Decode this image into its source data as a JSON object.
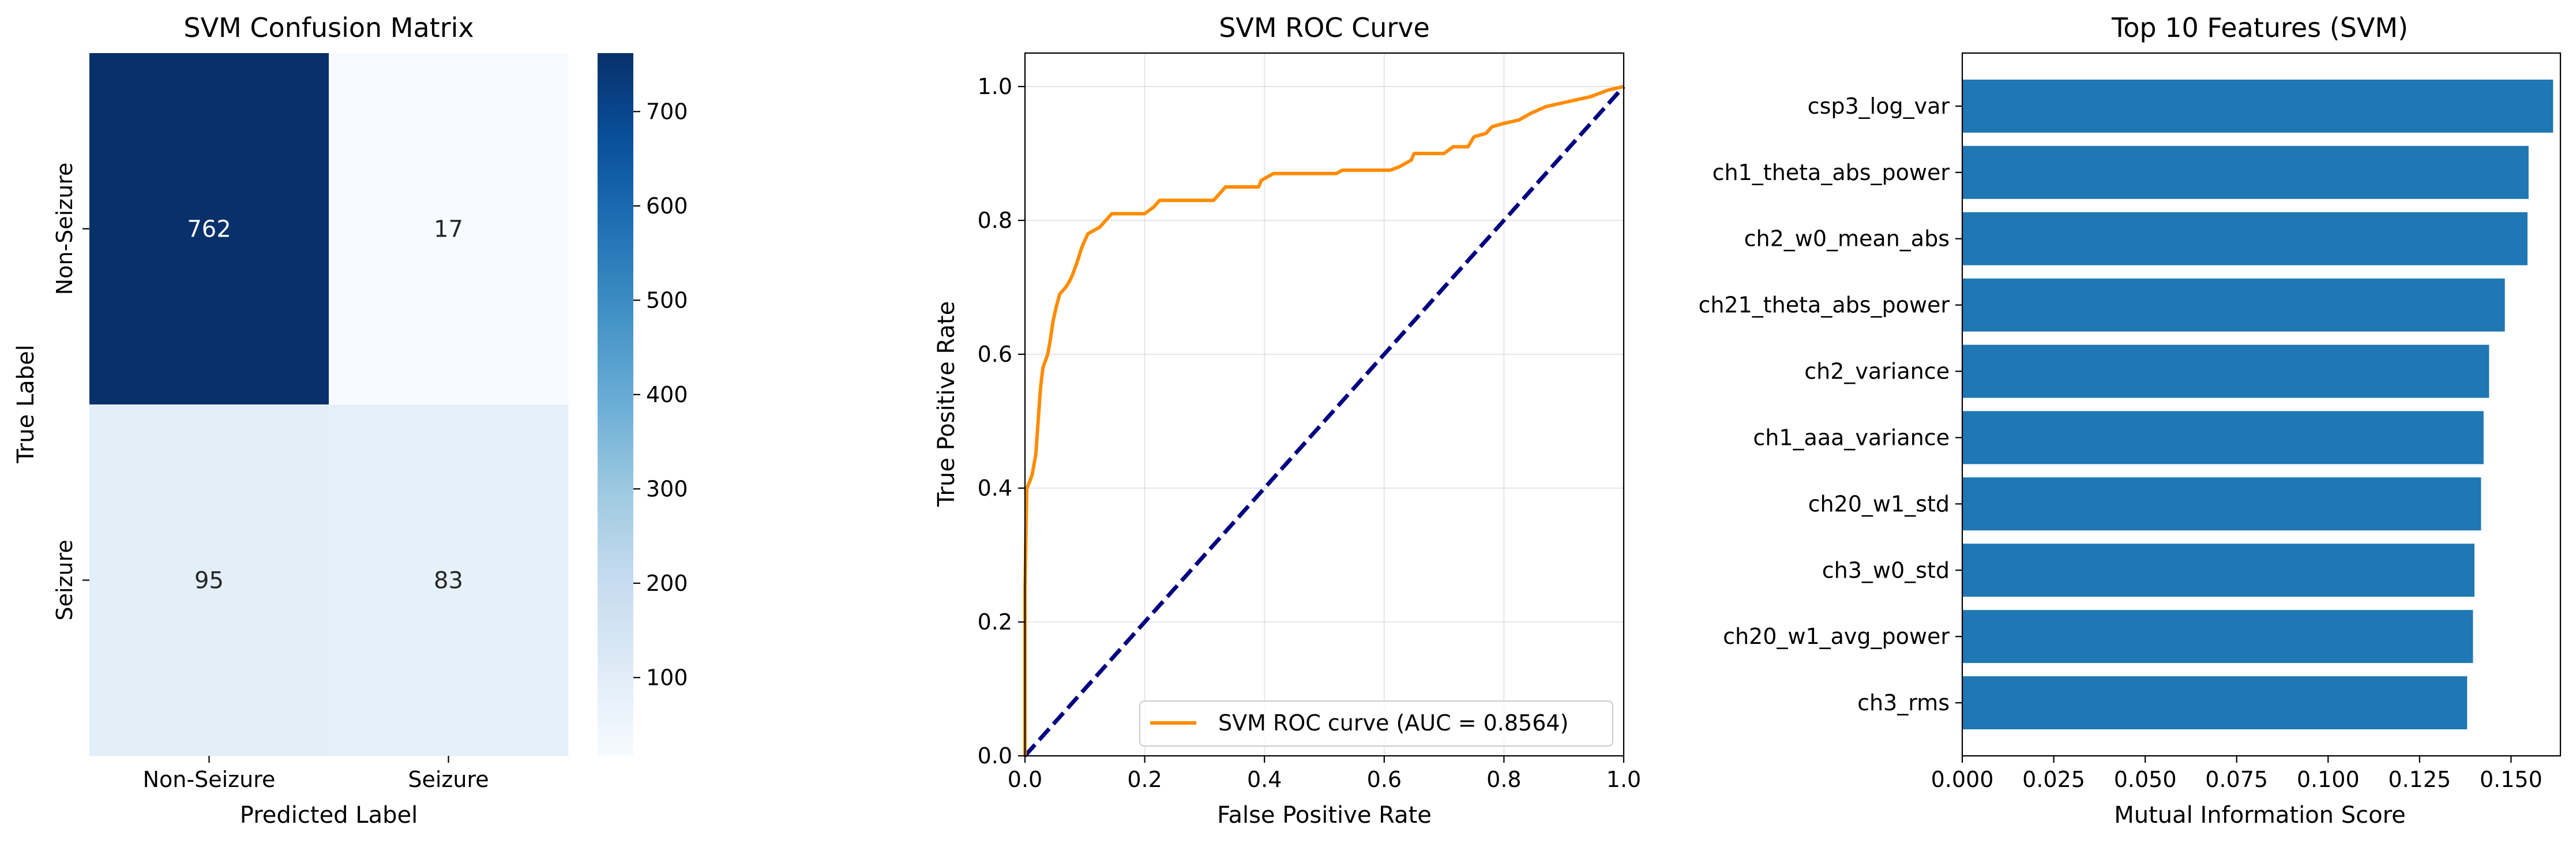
{
  "chart_data": [
    {
      "type": "heatmap",
      "title": "SVM Confusion Matrix",
      "xlabel": "Predicted Label",
      "ylabel": "True Label",
      "x_categories": [
        "Non-Seizure",
        "Seizure"
      ],
      "y_categories": [
        "Non-Seizure",
        "Seizure"
      ],
      "matrix": [
        [
          762,
          17
        ],
        [
          95,
          83
        ]
      ],
      "cells": [
        {
          "text": "762",
          "value": 762,
          "row": 0,
          "col": 0
        },
        {
          "text": "17",
          "value": 17,
          "row": 0,
          "col": 1
        },
        {
          "text": "95",
          "value": 95,
          "row": 1,
          "col": 0
        },
        {
          "text": "83",
          "value": 83,
          "row": 1,
          "col": 1
        }
      ],
      "colorbar": {
        "range": [
          17,
          762
        ],
        "ticks": [
          100,
          200,
          300,
          400,
          500,
          600,
          700
        ],
        "tick_labels": [
          "100",
          "200",
          "300",
          "400",
          "500",
          "600",
          "700"
        ]
      },
      "colormap": "Blues",
      "low_color": "#f7fbff",
      "high_color": "#08306b"
    },
    {
      "type": "line",
      "title": "SVM ROC Curve",
      "xlabel": "False Positive Rate",
      "ylabel": "True Positive Rate",
      "xlim": [
        0,
        1
      ],
      "ylim": [
        0,
        1.05
      ],
      "x_ticks": [
        0,
        0.2,
        0.4,
        0.6,
        0.8,
        1.0
      ],
      "x_tick_labels": [
        "0.0",
        "0.2",
        "0.4",
        "0.6",
        "0.8",
        "1.0"
      ],
      "y_ticks": [
        0,
        0.2,
        0.4,
        0.6,
        0.8,
        1.0
      ],
      "y_tick_labels": [
        "0.0",
        "0.2",
        "0.4",
        "0.6",
        "0.8",
        "1.0"
      ],
      "grid": true,
      "legend_position": "lower right",
      "series": [
        {
          "name": "SVM ROC curve (AUC = 0.8564)",
          "color": "#ff8c00",
          "style": "solid",
          "points": [
            [
              0,
              0
            ],
            [
              0,
              0.25
            ],
            [
              0.003,
              0.4
            ],
            [
              0.008,
              0.41
            ],
            [
              0.012,
              0.42
            ],
            [
              0.018,
              0.45
            ],
            [
              0.022,
              0.5
            ],
            [
              0.026,
              0.55
            ],
            [
              0.03,
              0.58
            ],
            [
              0.038,
              0.6
            ],
            [
              0.042,
              0.62
            ],
            [
              0.047,
              0.65
            ],
            [
              0.052,
              0.67
            ],
            [
              0.058,
              0.69
            ],
            [
              0.068,
              0.7
            ],
            [
              0.075,
              0.71
            ],
            [
              0.08,
              0.72
            ],
            [
              0.088,
              0.74
            ],
            [
              0.095,
              0.76
            ],
            [
              0.105,
              0.78
            ],
            [
              0.115,
              0.785
            ],
            [
              0.125,
              0.79
            ],
            [
              0.135,
              0.8
            ],
            [
              0.145,
              0.81
            ],
            [
              0.2,
              0.81
            ],
            [
              0.215,
              0.82
            ],
            [
              0.225,
              0.83
            ],
            [
              0.315,
              0.83
            ],
            [
              0.325,
              0.84
            ],
            [
              0.335,
              0.85
            ],
            [
              0.39,
              0.85
            ],
            [
              0.395,
              0.86
            ],
            [
              0.405,
              0.865
            ],
            [
              0.415,
              0.87
            ],
            [
              0.52,
              0.87
            ],
            [
              0.53,
              0.875
            ],
            [
              0.61,
              0.875
            ],
            [
              0.625,
              0.88
            ],
            [
              0.645,
              0.89
            ],
            [
              0.65,
              0.9
            ],
            [
              0.7,
              0.9
            ],
            [
              0.715,
              0.91
            ],
            [
              0.74,
              0.91
            ],
            [
              0.75,
              0.925
            ],
            [
              0.77,
              0.93
            ],
            [
              0.78,
              0.94
            ],
            [
              0.8,
              0.945
            ],
            [
              0.825,
              0.95
            ],
            [
              0.845,
              0.96
            ],
            [
              0.87,
              0.97
            ],
            [
              0.895,
              0.975
            ],
            [
              0.92,
              0.98
            ],
            [
              0.945,
              0.985
            ],
            [
              0.96,
              0.99
            ],
            [
              0.975,
              0.995
            ],
            [
              1.0,
              1.0
            ]
          ]
        },
        {
          "name": "",
          "color": "#000080",
          "style": "dashed",
          "points": [
            [
              0,
              0
            ],
            [
              1,
              1
            ]
          ]
        }
      ]
    },
    {
      "type": "bar",
      "orientation": "horizontal",
      "title": "Top 10 Features (SVM)",
      "xlabel": "Mutual Information Score",
      "ylabel": "",
      "xlim": [
        0,
        0.1635
      ],
      "x_ticks": [
        0,
        0.025,
        0.05,
        0.075,
        0.1,
        0.125,
        0.15
      ],
      "x_tick_labels": [
        "0.000",
        "0.025",
        "0.050",
        "0.075",
        "0.100",
        "0.125",
        "0.150"
      ],
      "bar_color": "#1f77b4",
      "categories": [
        "csp3_log_var",
        "ch1_theta_abs_power",
        "ch2_w0_mean_abs",
        "ch21_theta_abs_power",
        "ch2_variance",
        "ch1_aaa_variance",
        "ch20_w1_std",
        "ch3_w0_std",
        "ch20_w1_avg_power",
        "ch3_rms"
      ],
      "values": [
        0.1615,
        0.1548,
        0.1545,
        0.1483,
        0.144,
        0.1425,
        0.1418,
        0.14,
        0.1396,
        0.138
      ]
    }
  ]
}
